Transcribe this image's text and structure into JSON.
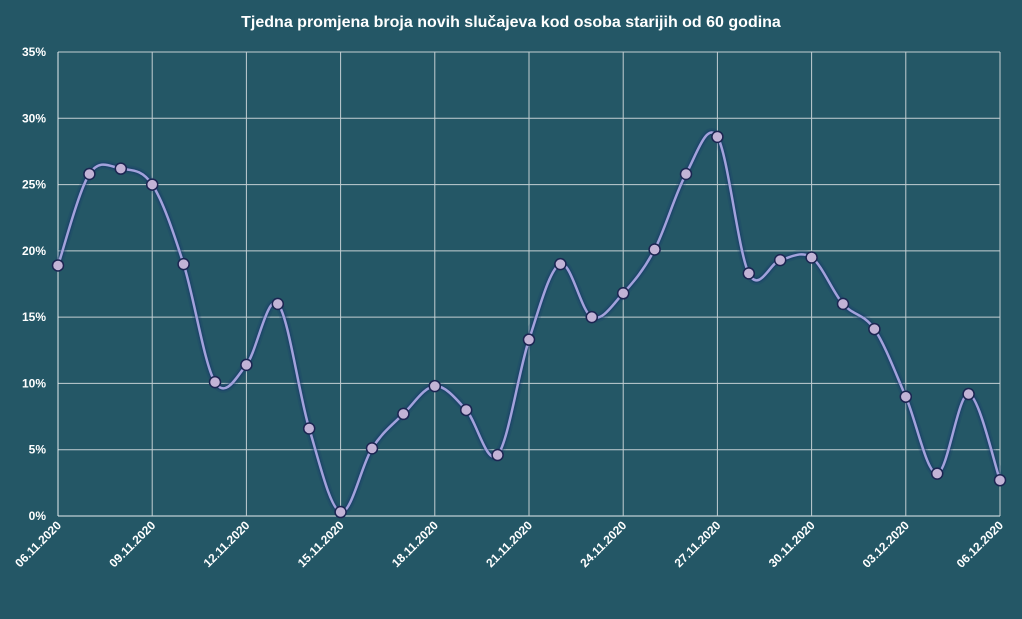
{
  "colors": {
    "background": "#245766",
    "grid": "#c3cfd3",
    "axis": "#e6edf0",
    "line": "#a3a2dc",
    "line_glow": "#17356e",
    "marker_fill": "#c2b3d6",
    "marker_stroke": "#1c2552",
    "text": "#ffffff"
  },
  "chart_data": {
    "type": "line",
    "title": "Tjedna promjena broja novih slučajeva kod osoba starijih od 60 godina",
    "x": [
      "06.11.2020",
      "07.11.2020",
      "08.11.2020",
      "09.11.2020",
      "10.11.2020",
      "11.11.2020",
      "12.11.2020",
      "13.11.2020",
      "14.11.2020",
      "15.11.2020",
      "16.11.2020",
      "17.11.2020",
      "18.11.2020",
      "19.11.2020",
      "20.11.2020",
      "21.11.2020",
      "22.11.2020",
      "23.11.2020",
      "24.11.2020",
      "25.11.2020",
      "26.11.2020",
      "27.11.2020",
      "28.11.2020",
      "29.11.2020",
      "30.11.2020",
      "01.12.2020",
      "02.12.2020",
      "03.12.2020",
      "04.12.2020",
      "05.12.2020",
      "06.12.2020"
    ],
    "series": [
      {
        "values": [
          18.9,
          25.8,
          26.2,
          25.0,
          19.0,
          10.1,
          11.4,
          16.0,
          6.6,
          0.3,
          5.1,
          7.7,
          9.8,
          8.0,
          4.6,
          13.3,
          19.0,
          15.0,
          16.8,
          20.1,
          25.8,
          28.6,
          18.3,
          19.3,
          19.5,
          16.0,
          14.1,
          9.0,
          3.2,
          9.2,
          2.7
        ]
      }
    ],
    "x_ticks": [
      "06.11.2020",
      "09.11.2020",
      "12.11.2020",
      "15.11.2020",
      "18.11.2020",
      "21.11.2020",
      "24.11.2020",
      "27.11.2020",
      "30.11.2020",
      "03.12.2020",
      "06.12.2020"
    ],
    "y_ticks": [
      "0%",
      "5%",
      "10%",
      "15%",
      "20%",
      "25%",
      "30%",
      "35%"
    ],
    "ylim": [
      0,
      35
    ],
    "smooth": true,
    "grid": true,
    "legend": "none"
  }
}
